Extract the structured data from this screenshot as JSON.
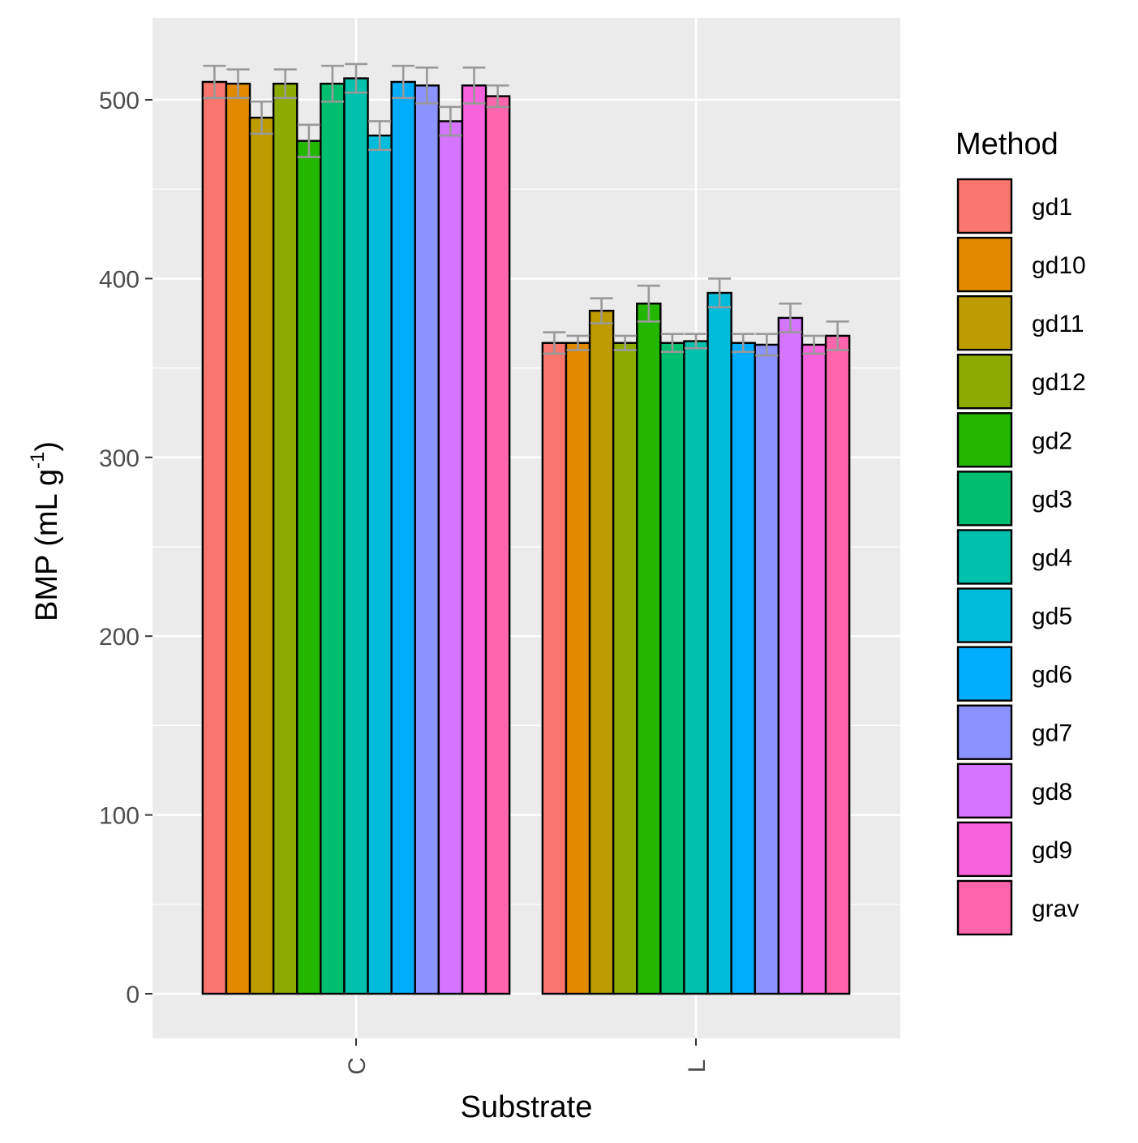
{
  "chart_data": {
    "type": "bar",
    "title": "",
    "xlabel": "Substrate",
    "ylabel": "BMP",
    "ylabel_units": "(mL g",
    "ylabel_superscript": "-1",
    "ylabel_close": ")",
    "ylim": [
      -25,
      547
    ],
    "yticks": [
      0,
      100,
      200,
      300,
      400,
      500
    ],
    "categories": [
      "C",
      "L"
    ],
    "legend_title": "Method",
    "legend_position": "right",
    "grid": true,
    "series": [
      {
        "name": "gd1",
        "color": "#F8766D",
        "values": [
          510,
          364
        ],
        "errors": [
          9,
          6
        ]
      },
      {
        "name": "gd10",
        "color": "#E18A00",
        "values": [
          509,
          364
        ],
        "errors": [
          8,
          4
        ]
      },
      {
        "name": "gd11",
        "color": "#BE9C00",
        "values": [
          490,
          382
        ],
        "errors": [
          9,
          7
        ]
      },
      {
        "name": "gd12",
        "color": "#8CAB00",
        "values": [
          509,
          364
        ],
        "errors": [
          8,
          4
        ]
      },
      {
        "name": "gd2",
        "color": "#24B700",
        "values": [
          477,
          386
        ],
        "errors": [
          9,
          10
        ]
      },
      {
        "name": "gd3",
        "color": "#00BE70",
        "values": [
          509,
          364
        ],
        "errors": [
          10,
          5
        ]
      },
      {
        "name": "gd4",
        "color": "#00C1AB",
        "values": [
          512,
          365
        ],
        "errors": [
          8,
          4
        ]
      },
      {
        "name": "gd5",
        "color": "#00BBDA",
        "values": [
          480,
          392
        ],
        "errors": [
          8,
          8
        ]
      },
      {
        "name": "gd6",
        "color": "#00ACFC",
        "values": [
          510,
          364
        ],
        "errors": [
          9,
          5
        ]
      },
      {
        "name": "gd7",
        "color": "#8B93FF",
        "values": [
          508,
          363
        ],
        "errors": [
          10,
          6
        ]
      },
      {
        "name": "gd8",
        "color": "#D575FE",
        "values": [
          488,
          378
        ],
        "errors": [
          8,
          8
        ]
      },
      {
        "name": "gd9",
        "color": "#F962DD",
        "values": [
          508,
          363
        ],
        "errors": [
          10,
          5
        ]
      },
      {
        "name": "grav",
        "color": "#FF65AC",
        "values": [
          502,
          368
        ],
        "errors": [
          6,
          8
        ]
      }
    ]
  }
}
